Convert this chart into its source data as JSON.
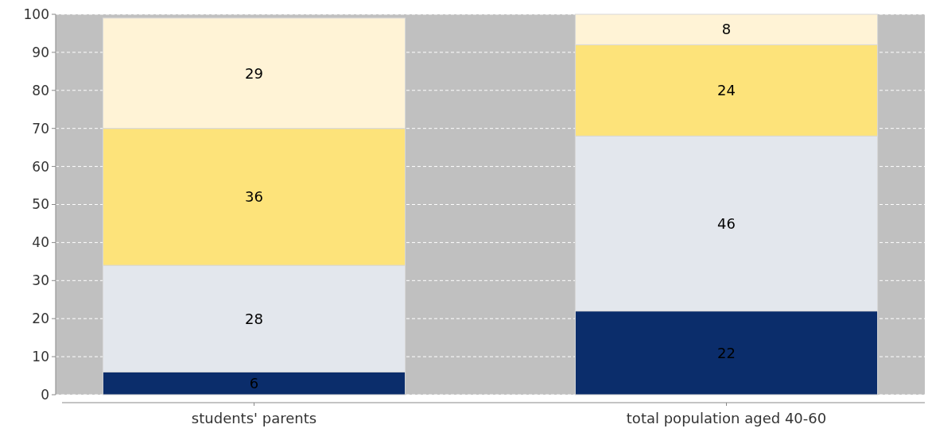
{
  "chart_data": {
    "type": "bar",
    "stacked": true,
    "categories": [
      "students' parents",
      "total population aged 40-60"
    ],
    "series": [
      {
        "color": "#0b2d6b",
        "values": [
          6,
          22
        ]
      },
      {
        "color": "#e3e7ed",
        "values": [
          28,
          46
        ]
      },
      {
        "color": "#fde37a",
        "values": [
          36,
          24
        ]
      },
      {
        "color": "#fff3d6",
        "values": [
          29,
          8
        ]
      }
    ],
    "ylim": [
      0,
      100
    ],
    "yticks": [
      0,
      10,
      20,
      30,
      40,
      50,
      60,
      70,
      80,
      90,
      100
    ],
    "grid": "y",
    "data_labels": true
  }
}
